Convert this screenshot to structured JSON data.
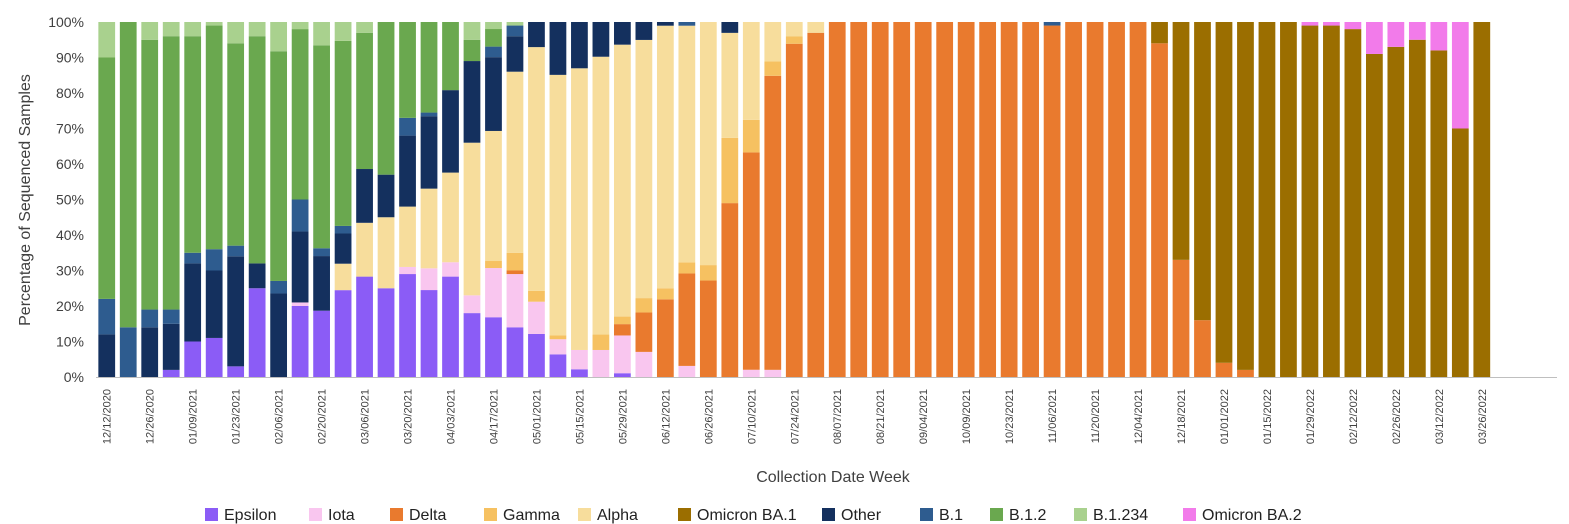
{
  "chart_data": {
    "type": "bar",
    "stacked": true,
    "percent_stacked": true,
    "xlabel": "Collection Date Week",
    "ylabel": "Percentage of Sequenced Samples",
    "ylim": [
      0,
      100
    ],
    "y_ticks": [
      "0%",
      "10%",
      "20%",
      "30%",
      "40%",
      "50%",
      "60%",
      "70%",
      "80%",
      "90%",
      "100%"
    ],
    "grid": false,
    "legend_position": "bottom",
    "x_tick_labels": [
      "12/12/2020",
      "12/26/2020",
      "01/09/2021",
      "01/23/2021",
      "02/06/2021",
      "02/20/2021",
      "03/06/2021",
      "03/20/2021",
      "04/03/2021",
      "04/17/2021",
      "05/01/2021",
      "05/15/2021",
      "05/29/2021",
      "06/12/2021",
      "06/26/2021",
      "07/10/2021",
      "07/24/2021",
      "08/07/2021",
      "08/21/2021",
      "09/04/2021",
      "10/09/2021",
      "10/23/2021",
      "11/06/2021",
      "11/20/2021",
      "12/04/2021",
      "12/18/2021",
      "01/01/2022",
      "01/15/2022",
      "01/29/2022",
      "02/12/2022",
      "02/26/2022",
      "03/12/2022",
      "03/26/2022"
    ],
    "series": [
      {
        "name": "Epsilon",
        "color": "#8B5CF6",
        "values": [
          0,
          0,
          0,
          2,
          10,
          11,
          3,
          25,
          0,
          20,
          17,
          23,
          28,
          25,
          29,
          24,
          28,
          18,
          17,
          14,
          12,
          6,
          2,
          0,
          1,
          0,
          0,
          0,
          0,
          0,
          0,
          0,
          0,
          0,
          0,
          0,
          0,
          0,
          0,
          0,
          0,
          0,
          0,
          0,
          0,
          0,
          0,
          0,
          0,
          0,
          0,
          0,
          0,
          0,
          0,
          0,
          0,
          0,
          0,
          0,
          0,
          0,
          0,
          0,
          0,
          0,
          0,
          0
        ]
      },
      {
        "name": "Iota",
        "color": "#F9C6EF",
        "values": [
          0,
          0,
          0,
          0,
          0,
          0,
          0,
          0,
          0,
          1,
          0,
          0,
          0,
          0,
          2,
          6,
          4,
          5,
          14,
          15,
          9,
          4,
          5,
          7,
          10,
          7,
          0,
          3,
          0,
          0,
          2,
          2,
          0,
          0,
          0,
          0,
          0,
          0,
          0,
          0,
          0,
          0,
          0,
          0,
          0,
          0,
          0,
          0,
          0,
          0,
          0,
          0,
          0,
          0,
          0,
          0,
          0,
          0,
          0,
          0,
          0,
          0,
          0,
          0,
          0,
          0,
          0,
          0
        ]
      },
      {
        "name": "Delta",
        "color": "#E97A2E",
        "values": [
          0,
          0,
          0,
          0,
          0,
          0,
          0,
          0,
          0,
          0,
          0,
          0,
          0,
          0,
          0,
          0,
          0,
          0,
          0,
          1,
          0,
          0,
          0,
          0,
          3,
          11,
          21,
          25,
          25,
          48,
          60,
          82,
          92,
          96,
          98,
          99,
          99,
          100,
          100,
          100,
          100,
          100,
          100,
          100,
          99,
          100,
          100,
          100,
          100,
          94,
          33,
          16,
          4,
          2,
          0,
          0,
          0,
          0,
          0,
          0,
          0,
          0,
          0,
          0,
          0,
          0,
          0,
          0
        ]
      },
      {
        "name": "Gamma",
        "color": "#F6C161",
        "values": [
          0,
          0,
          0,
          0,
          0,
          0,
          0,
          0,
          0,
          0,
          0,
          0,
          0,
          0,
          0,
          0,
          0,
          0,
          2,
          5,
          3,
          1,
          0,
          4,
          2,
          4,
          3,
          3,
          4,
          18,
          9,
          4,
          2,
          0,
          0,
          0,
          0,
          0,
          0,
          0,
          0,
          0,
          0,
          0,
          0,
          0,
          0,
          0,
          0,
          0,
          0,
          0,
          0,
          0,
          0,
          0,
          0,
          0,
          0,
          0,
          0,
          0,
          0,
          0,
          0,
          0,
          0,
          0
        ]
      },
      {
        "name": "Alpha",
        "color": "#F7DD9C",
        "values": [
          0,
          0,
          0,
          0,
          0,
          0,
          0,
          0,
          0,
          0,
          0,
          7,
          15,
          20,
          17,
          22,
          25,
          43,
          37,
          51,
          68,
          69,
          73,
          72,
          72,
          72,
          71,
          64,
          63,
          29,
          27,
          11,
          4,
          3,
          0,
          0,
          0,
          0,
          0,
          0,
          0,
          0,
          0,
          0,
          0,
          0,
          0,
          0,
          0,
          0,
          0,
          0,
          0,
          0,
          0,
          0,
          0,
          0,
          0,
          0,
          0,
          0,
          0,
          0,
          0,
          0,
          0,
          0
        ]
      },
      {
        "name": "Omicron BA.1",
        "color": "#9B6E00",
        "values": [
          0,
          0,
          0,
          0,
          0,
          0,
          0,
          0,
          0,
          0,
          0,
          0,
          0,
          0,
          0,
          0,
          0,
          0,
          0,
          0,
          0,
          0,
          0,
          0,
          0,
          0,
          0,
          0,
          0,
          0,
          0,
          0,
          0,
          0,
          0,
          0,
          0,
          0,
          0,
          0,
          0,
          0,
          0,
          0,
          0,
          0,
          0,
          0,
          0,
          6,
          67,
          84,
          96,
          98,
          100,
          100,
          99,
          99,
          98,
          91,
          93,
          95,
          92,
          70,
          100,
          0,
          0,
          0
        ]
      },
      {
        "name": "Other",
        "color": "#14305E",
        "values": [
          12,
          0,
          14,
          13,
          22,
          19,
          31,
          7,
          20,
          20,
          14,
          8,
          15,
          12,
          20,
          20,
          23,
          23,
          21,
          10,
          7,
          14,
          12,
          9,
          6,
          5,
          1,
          0,
          0,
          3,
          0,
          0,
          0,
          0,
          0,
          0,
          0,
          0,
          0,
          0,
          0,
          0,
          0,
          0,
          0,
          0,
          0,
          0,
          0,
          0,
          0,
          0,
          0,
          0,
          0,
          0,
          0,
          0,
          0,
          0,
          0,
          0,
          0,
          0,
          0,
          0,
          0,
          0
        ]
      },
      {
        "name": "B.1",
        "color": "#2E5C8F",
        "values": [
          10,
          14,
          5,
          4,
          3,
          6,
          3,
          0,
          3,
          9,
          2,
          2,
          0,
          0,
          5,
          1,
          0,
          0,
          3,
          3,
          0,
          0,
          0,
          0,
          0,
          0,
          0,
          1,
          0,
          0,
          0,
          0,
          0,
          0,
          0,
          0,
          0,
          0,
          0,
          0,
          0,
          0,
          0,
          0,
          1,
          0,
          0,
          0,
          0,
          0,
          0,
          0,
          0,
          0,
          0,
          0,
          0,
          0,
          0,
          0,
          0,
          0,
          0,
          0,
          0,
          0,
          0,
          0
        ]
      },
      {
        "name": "B.1.2",
        "color": "#6AA84F",
        "values": [
          68,
          86,
          76,
          77,
          61,
          63,
          57,
          64,
          55,
          48,
          52,
          49,
          38,
          43,
          27,
          25,
          19,
          6,
          5,
          0,
          0,
          0,
          0,
          0,
          0,
          0,
          0,
          0,
          0,
          0,
          0,
          0,
          0,
          0,
          0,
          0,
          0,
          0,
          0,
          0,
          0,
          0,
          0,
          0,
          0,
          0,
          0,
          0,
          0,
          0,
          0,
          0,
          0,
          0,
          0,
          0,
          0,
          0,
          0,
          0,
          0,
          0,
          0,
          0,
          0,
          0,
          0,
          0
        ]
      },
      {
        "name": "B.1.234",
        "color": "#A9D18E",
        "values": [
          10,
          0,
          5,
          4,
          4,
          1,
          6,
          4,
          7,
          2,
          6,
          5,
          3,
          0,
          0,
          0,
          0,
          5,
          2,
          1,
          0,
          0,
          0,
          0,
          0,
          0,
          0,
          0,
          0,
          0,
          0,
          0,
          0,
          0,
          0,
          0,
          0,
          0,
          0,
          0,
          0,
          0,
          0,
          0,
          0,
          0,
          0,
          0,
          0,
          0,
          0,
          0,
          0,
          0,
          0,
          0,
          0,
          0,
          0,
          0,
          0,
          0,
          0,
          0,
          0,
          0,
          0,
          0
        ]
      },
      {
        "name": "Omicron BA.2",
        "color": "#F27BEA",
        "values": [
          0,
          0,
          0,
          0,
          0,
          0,
          0,
          0,
          0,
          0,
          0,
          0,
          0,
          0,
          0,
          0,
          0,
          0,
          0,
          0,
          0,
          0,
          0,
          0,
          0,
          0,
          0,
          0,
          0,
          0,
          0,
          0,
          0,
          0,
          0,
          0,
          0,
          0,
          0,
          0,
          0,
          0,
          0,
          0,
          0,
          0,
          0,
          0,
          0,
          0,
          0,
          0,
          0,
          0,
          0,
          0,
          1,
          1,
          2,
          9,
          7,
          5,
          8,
          30,
          0,
          0,
          0,
          0
        ]
      }
    ]
  }
}
